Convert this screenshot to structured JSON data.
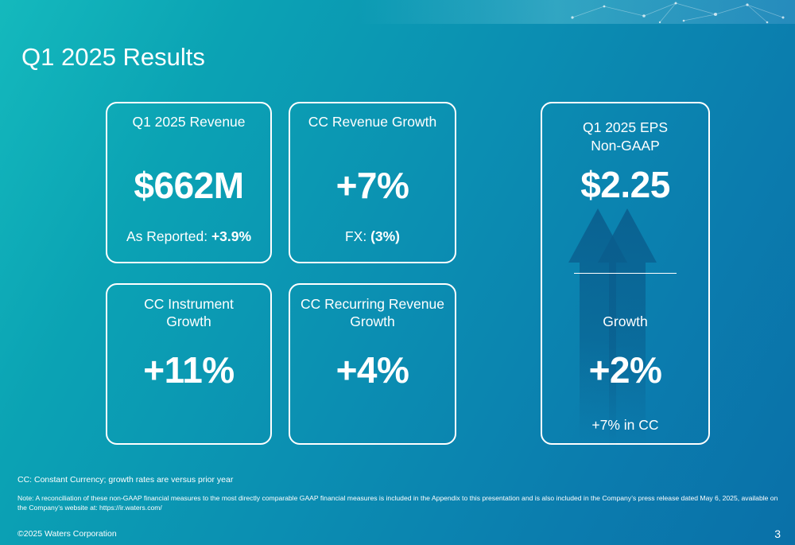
{
  "title": "Q1 2025 Results",
  "cards": {
    "revenue": {
      "label": "Q1 2025 Revenue",
      "value": "$662M",
      "sub_prefix": "As Reported: ",
      "sub_value": "+3.9%"
    },
    "cc_revenue": {
      "label": "CC Revenue Growth",
      "value": "+7%",
      "sub_prefix": "FX: ",
      "sub_value": "(3%)"
    },
    "cc_instrument": {
      "label_line1": "CC Instrument",
      "label_line2": "Growth",
      "value": "+11%"
    },
    "cc_recurring": {
      "label_line1": "CC Recurring Revenue",
      "label_line2": "Growth",
      "value": "+4%"
    },
    "eps": {
      "label_line1": "Q1 2025 EPS",
      "label_line2": "Non-GAAP",
      "value": "$2.25",
      "growth_label": "Growth",
      "growth_value": "+2%",
      "growth_sub": "+7% in CC"
    }
  },
  "footnotes": {
    "cc_note": "CC: Constant Currency; growth rates are versus prior year",
    "reconciliation_note": "Note: A reconciliation of these non-GAAP financial measures to the most directly comparable GAAP financial measures is included in the Appendix to this presentation and is also included in the Company’s press release dated May 6, 2025, available on the Company’s website at: https://ir.waters.com/"
  },
  "copyright": "©2025 Waters Corporation",
  "page_number": "3",
  "colors": {
    "background_start": "#14b9bd",
    "background_end": "#0a70a8",
    "card_border": "#ffffff",
    "arrow": "#0a5c8c"
  },
  "icons": [
    "network-decoration-icon",
    "up-arrows-icon"
  ]
}
